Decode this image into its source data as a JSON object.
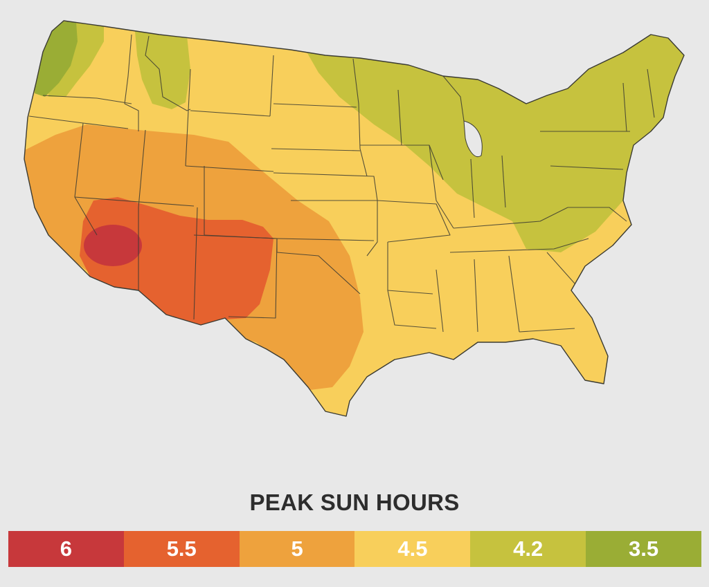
{
  "legend": {
    "title": "PEAK SUN HOURS",
    "items": [
      {
        "label": "6",
        "color": "#c7383b"
      },
      {
        "label": "5.5",
        "color": "#e5622f"
      },
      {
        "label": "5",
        "color": "#eea23d"
      },
      {
        "label": "4.5",
        "color": "#f8cf5b"
      },
      {
        "label": "4.2",
        "color": "#c6c23e"
      },
      {
        "label": "3.5",
        "color": "#9aad35"
      }
    ]
  },
  "colors": {
    "background": "#e8e8e8",
    "zone_6": "#c7383b",
    "zone_5_5": "#e5622f",
    "zone_5": "#eea23d",
    "zone_4_5": "#f8cf5b",
    "zone_4_2": "#c6c23e",
    "zone_3_5": "#9aad35",
    "border": "#3a3a32"
  }
}
